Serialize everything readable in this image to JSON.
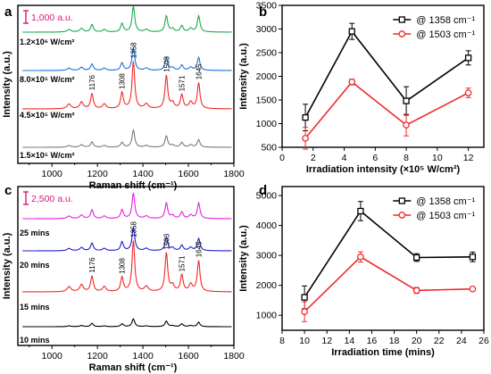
{
  "chart_data": [
    {
      "panel": "a",
      "type": "line",
      "xlabel": "Raman shift (cm⁻¹)",
      "ylabel": "Intensity (a.u.)",
      "xlim": [
        850,
        1800
      ],
      "xticks": [
        "1000",
        "1200",
        "1400",
        "1600",
        "1800"
      ],
      "scale_bar": "1,000 a.u.",
      "peaks": [
        1176,
        1308,
        1358,
        1503,
        1571,
        1645
      ],
      "peak_labels": [
        "1176",
        "1308",
        "1358",
        "1503",
        "1571",
        "1645"
      ],
      "series": [
        {
          "name": "1.5×10⁵ W/cm²",
          "color": "#7b7b7b",
          "heights": [
            0.1,
            0.09,
            0.32,
            0.21,
            0.09,
            0.14
          ]
        },
        {
          "name": "4.5×10⁵ W/cm²",
          "color": "#ee2a2a",
          "heights": [
            0.28,
            0.3,
            0.88,
            0.62,
            0.26,
            0.48
          ]
        },
        {
          "name": "8.0×10⁵ W/cm²",
          "color": "#1f6fdd",
          "heights": [
            0.12,
            0.14,
            0.42,
            0.24,
            0.1,
            0.24
          ]
        },
        {
          "name": "1.2×10⁶ W/cm²",
          "color": "#1ea84f",
          "heights": [
            0.14,
            0.16,
            0.48,
            0.3,
            0.12,
            0.3
          ]
        }
      ]
    },
    {
      "panel": "b",
      "type": "line",
      "xlabel": "Irradiation intensity (×10⁵ W/cm²)",
      "ylabel": "Intensity (a.u.)",
      "xlim": [
        0,
        13
      ],
      "ylim": [
        500,
        3500
      ],
      "x": [
        1.5,
        4.5,
        8,
        12
      ],
      "xticks": [
        "0",
        "2",
        "4",
        "6",
        "8",
        "10",
        "12"
      ],
      "yticks": [
        "500",
        "1000",
        "1500",
        "2000",
        "2500",
        "3000",
        "3500"
      ],
      "legend_position": "top-right",
      "series": [
        {
          "name": "@ 1358 cm⁻¹",
          "color": "#000000",
          "marker": "square",
          "values": [
            1130,
            2950,
            1480,
            2390
          ],
          "errors": [
            280,
            170,
            300,
            150
          ]
        },
        {
          "name": "@ 1503 cm⁻¹",
          "color": "#ee2a2a",
          "marker": "circle",
          "values": [
            690,
            1880,
            970,
            1650
          ],
          "errors": [
            230,
            60,
            230,
            100
          ]
        }
      ]
    },
    {
      "panel": "c",
      "type": "line",
      "xlabel": "Raman shift (cm⁻¹)",
      "ylabel": "Intensity (a.u.)",
      "xlim": [
        850,
        1800
      ],
      "xticks": [
        "1000",
        "1200",
        "1400",
        "1600",
        "1800"
      ],
      "scale_bar": "2,500 a.u.",
      "peaks": [
        1176,
        1308,
        1358,
        1503,
        1571,
        1645
      ],
      "peak_labels": [
        "1176",
        "1308",
        "1358",
        "1503",
        "1571",
        "1645"
      ],
      "series": [
        {
          "name": "10 mins",
          "color": "#000000",
          "heights": [
            0.06,
            0.05,
            0.14,
            0.1,
            0.05,
            0.08
          ]
        },
        {
          "name": "15 mins",
          "color": "#ee2a2a",
          "heights": [
            0.28,
            0.26,
            0.92,
            0.7,
            0.3,
            0.56
          ]
        },
        {
          "name": "20 mins",
          "color": "#1f1fcc",
          "heights": [
            0.14,
            0.16,
            0.42,
            0.24,
            0.1,
            0.22
          ]
        },
        {
          "name": "25 mins",
          "color": "#e81ee0",
          "heights": [
            0.16,
            0.16,
            0.46,
            0.28,
            0.12,
            0.28
          ]
        }
      ]
    },
    {
      "panel": "d",
      "type": "line",
      "xlabel": "Irradiation time (mins)",
      "ylabel": "Intensity (a.u.)",
      "xlim": [
        8,
        26
      ],
      "ylim": [
        500,
        5300
      ],
      "x": [
        10,
        15,
        20,
        25
      ],
      "xticks": [
        "8",
        "10",
        "12",
        "14",
        "16",
        "18",
        "20",
        "22",
        "24",
        "26"
      ],
      "yticks": [
        "1000",
        "2000",
        "3000",
        "4000",
        "5000"
      ],
      "legend_position": "top-right",
      "series": [
        {
          "name": "@ 1358 cm⁻¹",
          "color": "#000000",
          "marker": "square",
          "values": [
            1600,
            4480,
            2930,
            2950
          ],
          "errors": [
            380,
            320,
            130,
            160
          ]
        },
        {
          "name": "@ 1503 cm⁻¹",
          "color": "#ee2a2a",
          "marker": "circle",
          "values": [
            1120,
            2950,
            1830,
            1880
          ],
          "errors": [
            330,
            170,
            100,
            60
          ]
        }
      ]
    }
  ]
}
